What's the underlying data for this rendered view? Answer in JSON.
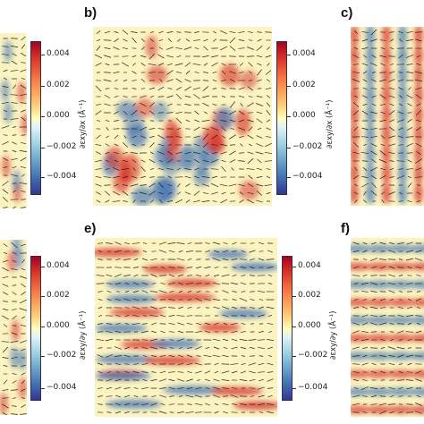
{
  "panels": [
    {
      "label": "b)",
      "pattern": "patchy"
    },
    {
      "label": "c)",
      "pattern": "vertical-stripes"
    },
    {
      "label": "e)",
      "pattern": "horizontal-bands"
    },
    {
      "label": "f)",
      "pattern": "horizontal-stripes"
    }
  ],
  "colorbars": [
    {
      "axis_label": "∂εxy/∂x (Å⁻¹)",
      "ticks": [
        "0.004",
        "0.002",
        "0.000",
        "−0.002",
        "−0.004"
      ]
    },
    {
      "axis_label": "∂εxy/∂y (Å⁻¹)",
      "ticks": [
        "0.004",
        "0.002",
        "0.000",
        "−0.002",
        "−0.004"
      ]
    }
  ],
  "colors": {
    "positive": "#d73027",
    "negative": "#4575b4",
    "background": "#fbf3c0",
    "arrows": "#222222"
  }
}
